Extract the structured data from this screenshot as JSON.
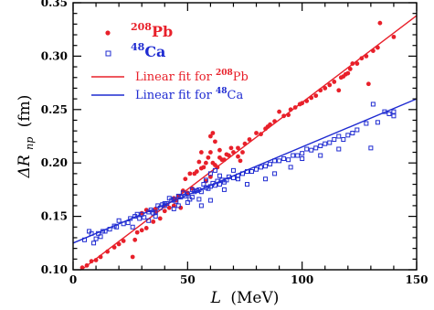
{
  "chart_data": {
    "type": "scatter",
    "xlabel": "L",
    "xlabel_unit": "(MeV)",
    "ylabel": "ΔR",
    "ylabel_sub": "np",
    "ylabel_unit": "(fm)",
    "xlim": [
      0,
      150
    ],
    "ylim": [
      0.1,
      0.35
    ],
    "xticks": [
      0,
      50,
      100,
      150
    ],
    "yticks": [
      0.1,
      0.15,
      0.2,
      0.25,
      0.3,
      0.35
    ],
    "ytick_labels": [
      "0.10",
      "0.15",
      "0.20",
      "0.25",
      "0.30",
      "0.35"
    ],
    "grid": false,
    "legend_position": "top-left",
    "legend": [
      {
        "sup": "208",
        "base": "Pb",
        "marker": "dot",
        "color": "#e8202a"
      },
      {
        "sup": "48",
        "base": "Ca",
        "marker": "square",
        "color": "#1f2bd1"
      },
      {
        "text": "Linear fit for ",
        "sup": "208",
        "base": "Pb",
        "marker": "line",
        "color": "#e8202a"
      },
      {
        "text": "Linear fit for ",
        "sup": "48",
        "base": "Ca",
        "marker": "line",
        "color": "#1f2bd1"
      }
    ],
    "series": [
      {
        "color": "#e8202a",
        "marker": "dot",
        "points": [
          [
            4,
            0.102
          ],
          [
            6,
            0.104
          ],
          [
            8,
            0.108
          ],
          [
            10,
            0.109
          ],
          [
            12,
            0.112
          ],
          [
            15,
            0.117
          ],
          [
            18,
            0.121
          ],
          [
            20,
            0.124
          ],
          [
            22,
            0.127
          ],
          [
            26,
            0.112
          ],
          [
            27,
            0.128
          ],
          [
            28,
            0.135
          ],
          [
            30,
            0.137
          ],
          [
            32,
            0.139
          ],
          [
            35,
            0.145
          ],
          [
            36,
            0.155
          ],
          [
            38,
            0.148
          ],
          [
            40,
            0.155
          ],
          [
            42,
            0.158
          ],
          [
            44,
            0.16
          ],
          [
            45,
            0.165
          ],
          [
            46,
            0.169
          ],
          [
            47,
            0.158
          ],
          [
            48,
            0.174
          ],
          [
            49,
            0.185
          ],
          [
            50,
            0.172
          ],
          [
            51,
            0.19
          ],
          [
            52,
            0.176
          ],
          [
            53,
            0.19
          ],
          [
            54,
            0.192
          ],
          [
            55,
            0.201
          ],
          [
            56,
            0.195
          ],
          [
            57,
            0.196
          ],
          [
            58,
            0.2
          ],
          [
            59,
            0.205
          ],
          [
            60,
            0.21
          ],
          [
            61,
            0.2
          ],
          [
            62,
            0.198
          ],
          [
            63,
            0.196
          ],
          [
            64,
            0.205
          ],
          [
            65,
            0.203
          ],
          [
            66,
            0.203
          ],
          [
            67,
            0.208
          ],
          [
            68,
            0.207
          ],
          [
            70,
            0.21
          ],
          [
            72,
            0.214
          ],
          [
            74,
            0.21
          ],
          [
            75,
            0.218
          ],
          [
            77,
            0.222
          ],
          [
            80,
            0.228
          ],
          [
            82,
            0.227
          ],
          [
            84,
            0.232
          ],
          [
            85,
            0.234
          ],
          [
            86,
            0.236
          ],
          [
            88,
            0.239
          ],
          [
            90,
            0.248
          ],
          [
            92,
            0.244
          ],
          [
            94,
            0.245
          ],
          [
            95,
            0.25
          ],
          [
            97,
            0.252
          ],
          [
            99,
            0.255
          ],
          [
            100,
            0.256
          ],
          [
            102,
            0.258
          ],
          [
            104,
            0.261
          ],
          [
            106,
            0.263
          ],
          [
            108,
            0.268
          ],
          [
            110,
            0.27
          ],
          [
            112,
            0.273
          ],
          [
            114,
            0.276
          ],
          [
            116,
            0.268
          ],
          [
            117,
            0.28
          ],
          [
            118,
            0.281
          ],
          [
            119,
            0.283
          ],
          [
            120,
            0.284
          ],
          [
            121,
            0.288
          ],
          [
            122,
            0.293
          ],
          [
            124,
            0.293
          ],
          [
            126,
            0.298
          ],
          [
            128,
            0.3
          ],
          [
            129,
            0.274
          ],
          [
            131,
            0.305
          ],
          [
            133,
            0.308
          ],
          [
            134,
            0.331
          ],
          [
            140,
            0.318
          ],
          [
            30,
            0.153
          ],
          [
            32,
            0.156
          ],
          [
            36,
            0.157
          ],
          [
            44,
            0.167
          ],
          [
            56,
            0.21
          ],
          [
            60,
            0.225
          ],
          [
            61,
            0.228
          ],
          [
            62,
            0.22
          ],
          [
            64,
            0.212
          ],
          [
            69,
            0.214
          ],
          [
            72,
            0.206
          ],
          [
            73,
            0.202
          ],
          [
            58,
            0.183
          ],
          [
            60,
            0.187
          ]
        ]
      },
      {
        "color": "#1f2bd1",
        "marker": "square",
        "points": [
          [
            5,
            0.128
          ],
          [
            7,
            0.136
          ],
          [
            8,
            0.134
          ],
          [
            9,
            0.125
          ],
          [
            10,
            0.129
          ],
          [
            11,
            0.134
          ],
          [
            12,
            0.131
          ],
          [
            13,
            0.136
          ],
          [
            14,
            0.136
          ],
          [
            16,
            0.138
          ],
          [
            18,
            0.141
          ],
          [
            19,
            0.14
          ],
          [
            20,
            0.146
          ],
          [
            22,
            0.143
          ],
          [
            24,
            0.144
          ],
          [
            25,
            0.148
          ],
          [
            27,
            0.15
          ],
          [
            28,
            0.152
          ],
          [
            29,
            0.148
          ],
          [
            30,
            0.152
          ],
          [
            31,
            0.149
          ],
          [
            33,
            0.154
          ],
          [
            34,
            0.156
          ],
          [
            35,
            0.153
          ],
          [
            36,
            0.154
          ],
          [
            37,
            0.16
          ],
          [
            38,
            0.158
          ],
          [
            39,
            0.161
          ],
          [
            40,
            0.162
          ],
          [
            41,
            0.162
          ],
          [
            42,
            0.167
          ],
          [
            43,
            0.165
          ],
          [
            44,
            0.166
          ],
          [
            45,
            0.164
          ],
          [
            46,
            0.169
          ],
          [
            47,
            0.168
          ],
          [
            48,
            0.172
          ],
          [
            49,
            0.169
          ],
          [
            50,
            0.171
          ],
          [
            51,
            0.166
          ],
          [
            52,
            0.175
          ],
          [
            53,
            0.173
          ],
          [
            54,
            0.174
          ],
          [
            55,
            0.175
          ],
          [
            56,
            0.173
          ],
          [
            57,
            0.18
          ],
          [
            58,
            0.177
          ],
          [
            59,
            0.176
          ],
          [
            60,
            0.178
          ],
          [
            61,
            0.181
          ],
          [
            62,
            0.179
          ],
          [
            63,
            0.183
          ],
          [
            64,
            0.18
          ],
          [
            65,
            0.184
          ],
          [
            66,
            0.182
          ],
          [
            67,
            0.184
          ],
          [
            68,
            0.187
          ],
          [
            70,
            0.186
          ],
          [
            72,
            0.188
          ],
          [
            74,
            0.19
          ],
          [
            76,
            0.192
          ],
          [
            78,
            0.192
          ],
          [
            80,
            0.194
          ],
          [
            82,
            0.196
          ],
          [
            84,
            0.197
          ],
          [
            86,
            0.199
          ],
          [
            88,
            0.202
          ],
          [
            90,
            0.202
          ],
          [
            92,
            0.204
          ],
          [
            94,
            0.203
          ],
          [
            96,
            0.207
          ],
          [
            98,
            0.207
          ],
          [
            100,
            0.209
          ],
          [
            102,
            0.213
          ],
          [
            104,
            0.212
          ],
          [
            106,
            0.214
          ],
          [
            108,
            0.216
          ],
          [
            110,
            0.218
          ],
          [
            112,
            0.219
          ],
          [
            114,
            0.222
          ],
          [
            116,
            0.225
          ],
          [
            118,
            0.222
          ],
          [
            120,
            0.226
          ],
          [
            122,
            0.228
          ],
          [
            124,
            0.231
          ],
          [
            128,
            0.237
          ],
          [
            130,
            0.214
          ],
          [
            131,
            0.255
          ],
          [
            133,
            0.238
          ],
          [
            136,
            0.248
          ],
          [
            140,
            0.248
          ],
          [
            140,
            0.244
          ],
          [
            138,
            0.246
          ],
          [
            60,
            0.19
          ],
          [
            62,
            0.193
          ],
          [
            64,
            0.188
          ],
          [
            52,
            0.168
          ],
          [
            56,
            0.16
          ],
          [
            46,
            0.16
          ],
          [
            58,
            0.184
          ],
          [
            70,
            0.193
          ],
          [
            72,
            0.185
          ],
          [
            76,
            0.18
          ],
          [
            84,
            0.185
          ],
          [
            88,
            0.19
          ],
          [
            95,
            0.196
          ],
          [
            100,
            0.204
          ],
          [
            108,
            0.207
          ],
          [
            116,
            0.213
          ],
          [
            66,
            0.175
          ],
          [
            60,
            0.165
          ],
          [
            55,
            0.166
          ],
          [
            50,
            0.163
          ],
          [
            44,
            0.157
          ],
          [
            40,
            0.16
          ],
          [
            36,
            0.15
          ],
          [
            33,
            0.146
          ],
          [
            26,
            0.14
          ]
        ]
      }
    ],
    "fits": [
      {
        "color": "#e8202a",
        "x": [
          0,
          150
        ],
        "y": [
          0.094,
          0.338
        ]
      },
      {
        "color": "#1f2bd1",
        "x": [
          0,
          150
        ],
        "y": [
          0.125,
          0.26
        ]
      }
    ]
  }
}
